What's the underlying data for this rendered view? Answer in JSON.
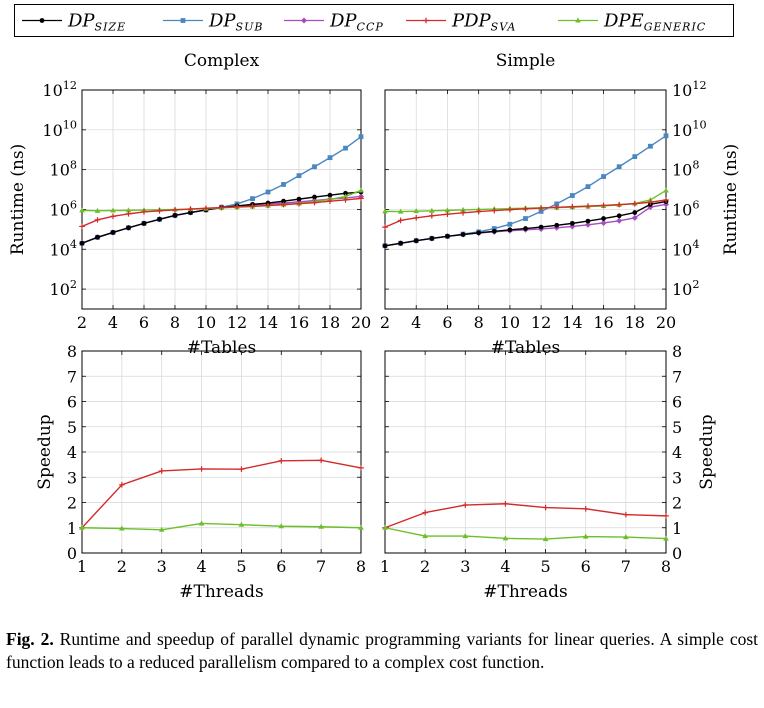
{
  "caption": {
    "label": "Fig. 2.",
    "text": "Runtime and speedup of parallel dynamic programming variants for linear queries. A simple cost function leads to a reduced parallelism compared to a complex cost function."
  },
  "legend": [
    {
      "base": "DP",
      "sub": "SIZE",
      "color": "#000000",
      "marker": "circle"
    },
    {
      "base": "DP",
      "sub": "SUB",
      "color": "#4a87c1",
      "marker": "square"
    },
    {
      "base": "DP",
      "sub": "CCP",
      "color": "#a64dbf",
      "marker": "diamond"
    },
    {
      "base": "PDP",
      "sub": "SVA",
      "color": "#d42a2a",
      "marker": "plus"
    },
    {
      "base": "DPE",
      "sub": "GENERIC",
      "color": "#6cbf2a",
      "marker": "triangle"
    }
  ],
  "chart_data": [
    {
      "type": "line",
      "title": "Complex",
      "xlabel": "#Tables",
      "ylabel": "Runtime (ns)",
      "yscale": "log",
      "xlim": [
        2,
        20
      ],
      "ylim": [
        10,
        1000000000000
      ],
      "xticks": [
        2,
        4,
        6,
        8,
        10,
        12,
        14,
        16,
        18,
        20
      ],
      "yticks": [
        {
          "base": "10",
          "exp": "2",
          "value": 100
        },
        {
          "base": "10",
          "exp": "4",
          "value": 10000
        },
        {
          "base": "10",
          "exp": "6",
          "value": 1000000
        },
        {
          "base": "10",
          "exp": "8",
          "value": 100000000
        },
        {
          "base": "10",
          "exp": "10",
          "value": 10000000000
        },
        {
          "base": "10",
          "exp": "12",
          "value": 1000000000000
        }
      ],
      "yaxis_side": "left",
      "x": [
        2,
        3,
        4,
        5,
        6,
        7,
        8,
        9,
        10,
        11,
        12,
        13,
        14,
        15,
        16,
        17,
        18,
        19,
        20
      ],
      "series": [
        {
          "legend_index": 1,
          "values": [
            20000,
            40000,
            70000,
            120000,
            200000,
            320000,
            500000,
            700000,
            950000,
            1300000,
            1900000,
            3500000,
            7500000,
            18000000,
            50000000,
            140000000,
            400000000,
            1200000000,
            4500000000
          ]
        },
        {
          "legend_index": 2,
          "values": [
            20000,
            40000,
            70000,
            120000,
            200000,
            320000,
            500000,
            700000,
            950000,
            1250000,
            1500000,
            1700000,
            1900000,
            2100000,
            2400000,
            2800000,
            3300000,
            3800000,
            4500000
          ]
        },
        {
          "legend_index": 0,
          "values": [
            20000,
            40000,
            70000,
            120000,
            200000,
            320000,
            500000,
            700000,
            950000,
            1250000,
            1500000,
            1800000,
            2100000,
            2600000,
            3300000,
            4200000,
            5200000,
            6500000,
            7500000
          ]
        },
        {
          "legend_index": 4,
          "values": [
            900000,
            850000,
            880000,
            900000,
            930000,
            960000,
            1000000,
            1050000,
            1100000,
            1200000,
            1300000,
            1400000,
            1550000,
            1750000,
            2000000,
            2500000,
            3200000,
            4500000,
            9000000
          ]
        },
        {
          "legend_index": 3,
          "values": [
            140000,
            300000,
            450000,
            600000,
            750000,
            850000,
            950000,
            1050000,
            1150000,
            1250000,
            1350000,
            1450000,
            1600000,
            1750000,
            1950000,
            2200000,
            2600000,
            3000000,
            3600000
          ]
        }
      ]
    },
    {
      "type": "line",
      "title": "Simple",
      "xlabel": "#Tables",
      "ylabel": "Runtime (ns)",
      "yscale": "log",
      "xlim": [
        2,
        20
      ],
      "ylim": [
        10,
        1000000000000
      ],
      "xticks": [
        2,
        4,
        6,
        8,
        10,
        12,
        14,
        16,
        18,
        20
      ],
      "yticks": [
        {
          "base": "10",
          "exp": "2",
          "value": 100
        },
        {
          "base": "10",
          "exp": "4",
          "value": 10000
        },
        {
          "base": "10",
          "exp": "6",
          "value": 1000000
        },
        {
          "base": "10",
          "exp": "8",
          "value": 100000000
        },
        {
          "base": "10",
          "exp": "10",
          "value": 10000000000
        },
        {
          "base": "10",
          "exp": "12",
          "value": 1000000000000
        }
      ],
      "yaxis_side": "right",
      "x": [
        2,
        3,
        4,
        5,
        6,
        7,
        8,
        9,
        10,
        11,
        12,
        13,
        14,
        15,
        16,
        17,
        18,
        19,
        20
      ],
      "series": [
        {
          "legend_index": 1,
          "values": [
            15000,
            20000,
            27000,
            35000,
            45000,
            58000,
            75000,
            110000,
            180000,
            350000,
            800000,
            1900000,
            5000000,
            14000000,
            45000000,
            140000000,
            450000000,
            1500000000,
            5000000000
          ]
        },
        {
          "legend_index": 2,
          "values": [
            15000,
            20000,
            27000,
            35000,
            45000,
            55000,
            65000,
            75000,
            85000,
            95000,
            105000,
            120000,
            140000,
            170000,
            210000,
            270000,
            380000,
            1300000,
            1800000
          ]
        },
        {
          "legend_index": 0,
          "values": [
            15000,
            20000,
            27000,
            35000,
            45000,
            55000,
            67000,
            80000,
            95000,
            110000,
            130000,
            160000,
            200000,
            260000,
            350000,
            480000,
            700000,
            1800000,
            2500000
          ]
        },
        {
          "legend_index": 4,
          "values": [
            800000,
            780000,
            820000,
            850000,
            900000,
            950000,
            1000000,
            1050000,
            1100000,
            1150000,
            1200000,
            1250000,
            1300000,
            1400000,
            1500000,
            1700000,
            2000000,
            3000000,
            9000000
          ]
        },
        {
          "legend_index": 3,
          "values": [
            130000,
            280000,
            380000,
            480000,
            580000,
            680000,
            780000,
            880000,
            980000,
            1080000,
            1180000,
            1280000,
            1380000,
            1480000,
            1600000,
            1750000,
            1950000,
            2300000,
            3000000
          ]
        }
      ]
    },
    {
      "type": "line",
      "title": "",
      "xlabel": "#Threads",
      "ylabel": "Speedup",
      "yscale": "linear",
      "xlim": [
        1,
        8
      ],
      "ylim": [
        0,
        8
      ],
      "xticks": [
        1,
        2,
        3,
        4,
        5,
        6,
        7,
        8
      ],
      "yticks": [
        0,
        1,
        2,
        3,
        4,
        5,
        6,
        7,
        8
      ],
      "yaxis_side": "left",
      "x": [
        1,
        2,
        3,
        4,
        5,
        6,
        7,
        8
      ],
      "series": [
        {
          "legend_index": 3,
          "values": [
            1.0,
            2.7,
            3.25,
            3.33,
            3.32,
            3.65,
            3.67,
            3.37
          ]
        },
        {
          "legend_index": 4,
          "values": [
            1.0,
            0.97,
            0.92,
            1.17,
            1.12,
            1.06,
            1.04,
            1.0
          ]
        }
      ]
    },
    {
      "type": "line",
      "title": "",
      "xlabel": "#Threads",
      "ylabel": "Speedup",
      "yscale": "linear",
      "xlim": [
        1,
        8
      ],
      "ylim": [
        0,
        8
      ],
      "xticks": [
        1,
        2,
        3,
        4,
        5,
        6,
        7,
        8
      ],
      "yticks": [
        0,
        1,
        2,
        3,
        4,
        5,
        6,
        7,
        8
      ],
      "yaxis_side": "right",
      "x": [
        1,
        2,
        3,
        4,
        5,
        6,
        7,
        8
      ],
      "series": [
        {
          "legend_index": 3,
          "values": [
            1.0,
            1.6,
            1.9,
            1.95,
            1.8,
            1.75,
            1.52,
            1.47
          ]
        },
        {
          "legend_index": 4,
          "values": [
            1.0,
            0.67,
            0.67,
            0.58,
            0.55,
            0.65,
            0.63,
            0.57
          ]
        }
      ]
    }
  ]
}
